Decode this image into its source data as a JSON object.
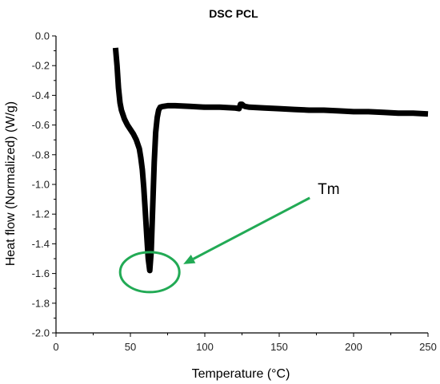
{
  "chart_data": {
    "type": "line",
    "title": "DSC PCL",
    "xlabel": "Temperature (°C)",
    "ylabel": "Heat flow (Normalized) (W/g)",
    "xlim": [
      0,
      250
    ],
    "ylim": [
      -2.0,
      0.0
    ],
    "xticks": [
      0,
      50,
      100,
      150,
      200,
      250
    ],
    "yticks": [
      0.0,
      -0.2,
      -0.4,
      -0.6,
      -0.8,
      -1.0,
      -1.2,
      -1.4,
      -1.6,
      -1.8,
      -2.0
    ],
    "ytick_labels": [
      "0.0",
      "-0.2",
      "-0.4",
      "-0.6",
      "-0.8",
      "-1.0",
      "-1.2",
      "-1.4",
      "-1.6",
      "-1.8",
      "-2.0"
    ],
    "grid": false,
    "series": [
      {
        "color": "#000000",
        "x": [
          40,
          41,
          42,
          43,
          44,
          46,
          48,
          50,
          52,
          54,
          56,
          57,
          58,
          59,
          60,
          61,
          62,
          63,
          64,
          65,
          66,
          67,
          68,
          69,
          70,
          72,
          75,
          80,
          90,
          100,
          110,
          120,
          123,
          124,
          125,
          126,
          127,
          130,
          140,
          150,
          160,
          170,
          180,
          190,
          200,
          210,
          220,
          230,
          240,
          250
        ],
        "y": [
          -0.08,
          -0.2,
          -0.35,
          -0.45,
          -0.5,
          -0.56,
          -0.6,
          -0.63,
          -0.66,
          -0.7,
          -0.76,
          -0.82,
          -0.9,
          -1.02,
          -1.18,
          -1.35,
          -1.5,
          -1.58,
          -1.45,
          -1.15,
          -0.85,
          -0.65,
          -0.55,
          -0.5,
          -0.48,
          -0.475,
          -0.47,
          -0.47,
          -0.475,
          -0.48,
          -0.48,
          -0.485,
          -0.49,
          -0.46,
          -0.46,
          -0.47,
          -0.475,
          -0.48,
          -0.485,
          -0.49,
          -0.495,
          -0.5,
          -0.5,
          -0.505,
          -0.51,
          -0.51,
          -0.515,
          -0.52,
          -0.52,
          -0.525
        ]
      }
    ],
    "annotations": [
      {
        "text": "Tm",
        "color": "#22aa55",
        "x": 63,
        "y": -1.58
      }
    ]
  }
}
